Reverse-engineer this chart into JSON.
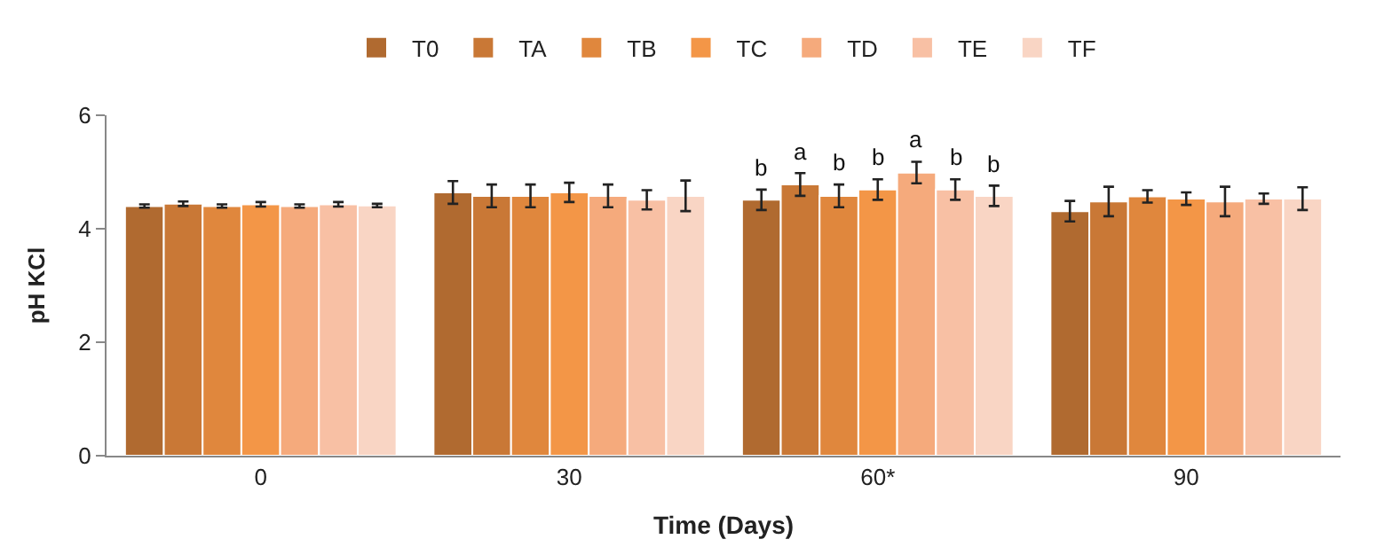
{
  "chart_data": {
    "type": "bar",
    "xlabel": "Time (Days)",
    "ylabel": "pH KCl",
    "categories": [
      "0",
      "30",
      "60*",
      "90"
    ],
    "ylim": [
      0,
      6
    ],
    "yticks": [
      0,
      2,
      4,
      6
    ],
    "grid": false,
    "legend": "top",
    "series": [
      {
        "name": "T0",
        "color": "#b06a30",
        "values": [
          4.4,
          4.64,
          4.51,
          4.31
        ],
        "errors": [
          0.03,
          0.2,
          0.18,
          0.18
        ],
        "value_labels": [
          null,
          null,
          "b",
          null
        ]
      },
      {
        "name": "TA",
        "color": "#c97836",
        "values": [
          4.44,
          4.58,
          4.78,
          4.48
        ],
        "errors": [
          0.04,
          0.2,
          0.2,
          0.26
        ],
        "value_labels": [
          null,
          null,
          "a",
          null
        ]
      },
      {
        "name": "TB",
        "color": "#e0873d",
        "values": [
          4.4,
          4.58,
          4.58,
          4.57
        ],
        "errors": [
          0.03,
          0.2,
          0.2,
          0.11
        ],
        "value_labels": [
          null,
          null,
          "b",
          null
        ]
      },
      {
        "name": "TC",
        "color": "#f39647",
        "values": [
          4.43,
          4.64,
          4.69,
          4.53
        ],
        "errors": [
          0.04,
          0.17,
          0.18,
          0.11
        ],
        "value_labels": [
          null,
          null,
          "b",
          null
        ]
      },
      {
        "name": "TD",
        "color": "#f5aa7c",
        "values": [
          4.4,
          4.58,
          4.99,
          4.48
        ],
        "errors": [
          0.03,
          0.2,
          0.19,
          0.26
        ],
        "value_labels": [
          null,
          null,
          "a",
          null
        ]
      },
      {
        "name": "TE",
        "color": "#f8c0a4",
        "values": [
          4.43,
          4.51,
          4.69,
          4.53
        ],
        "errors": [
          0.04,
          0.17,
          0.18,
          0.09
        ],
        "value_labels": [
          null,
          null,
          "b",
          null
        ]
      },
      {
        "name": "TF",
        "color": "#f9d5c4",
        "values": [
          4.41,
          4.58,
          4.58,
          4.53
        ],
        "errors": [
          0.03,
          0.27,
          0.18,
          0.2
        ],
        "value_labels": [
          null,
          null,
          "b",
          null
        ]
      }
    ]
  }
}
